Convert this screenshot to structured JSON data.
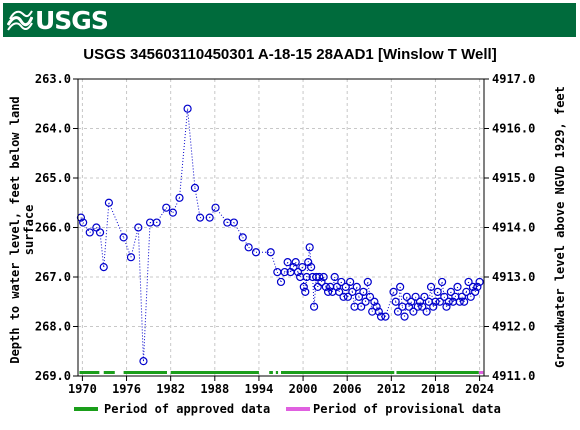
{
  "banner": {
    "logo_text": "USGS",
    "color": "#006b3c"
  },
  "chart_data": {
    "type": "scatter",
    "title": "USGS 345603110450301 A-18-15 28AAD1 [Winslow T Well]",
    "ylabel_left": [
      "Depth to water level, feet below land",
      "surface"
    ],
    "ylabel_right": "Groundwater level above NGVD 1929, feet",
    "x_ticks": [
      "1970",
      "1976",
      "1982",
      "1988",
      "1994",
      "2000",
      "2006",
      "2012",
      "2018",
      "2024"
    ],
    "x_tick_values": [
      1970,
      1976,
      1982,
      1988,
      1994,
      2000,
      2006,
      2012,
      2018,
      2024
    ],
    "xlim": [
      1969.4,
      2024.6
    ],
    "y_left_ticks": [
      "263.0",
      "264.0",
      "265.0",
      "266.0",
      "267.0",
      "268.0",
      "269.0"
    ],
    "y_left_tick_values": [
      263,
      264,
      265,
      266,
      267,
      268,
      269
    ],
    "ylim_left": [
      263.0,
      269.0
    ],
    "y_left_inverted": true,
    "y_right_ticks": [
      "4917.0",
      "4916.0",
      "4915.0",
      "4914.0",
      "4913.0",
      "4912.0",
      "4911.0"
    ],
    "y_right_tick_values": [
      4917,
      4916,
      4915,
      4914,
      4913,
      4912,
      4911
    ],
    "ylim_right": [
      4911.0,
      4917.0
    ],
    "series": [
      {
        "color": "#0000cc",
        "marker": "open-circle",
        "points": [
          [
            1969.8,
            265.8
          ],
          [
            1970.1,
            265.9
          ],
          [
            1971.0,
            266.1
          ],
          [
            1971.9,
            266.0
          ],
          [
            1972.4,
            266.1
          ],
          [
            1972.9,
            266.8
          ],
          [
            1973.6,
            265.5
          ],
          [
            1975.6,
            266.2
          ],
          [
            1976.6,
            266.6
          ],
          [
            1977.6,
            266.0
          ],
          [
            1978.3,
            268.7
          ],
          [
            1979.2,
            265.9
          ],
          [
            1980.1,
            265.9
          ],
          [
            1981.4,
            265.6
          ],
          [
            1982.3,
            265.7
          ],
          [
            1983.2,
            265.4
          ],
          [
            1984.3,
            263.6
          ],
          [
            1985.3,
            265.2
          ],
          [
            1986.0,
            265.8
          ],
          [
            1987.3,
            265.8
          ],
          [
            1988.1,
            265.6
          ],
          [
            1989.7,
            265.9
          ],
          [
            1990.6,
            265.9
          ],
          [
            1991.8,
            266.2
          ],
          [
            1992.6,
            266.4
          ],
          [
            1993.6,
            266.5
          ],
          [
            1995.6,
            266.5
          ],
          [
            1996.5,
            266.9
          ],
          [
            1997.0,
            267.1
          ],
          [
            1997.5,
            266.9
          ],
          [
            1997.9,
            266.7
          ],
          [
            1998.3,
            266.9
          ],
          [
            1998.7,
            266.8
          ],
          [
            1999.0,
            266.7
          ],
          [
            1999.3,
            266.9
          ],
          [
            1999.6,
            267.0
          ],
          [
            1999.9,
            266.8
          ],
          [
            2000.1,
            267.2
          ],
          [
            2000.3,
            267.3
          ],
          [
            2000.5,
            267.0
          ],
          [
            2000.7,
            266.7
          ],
          [
            2000.9,
            266.4
          ],
          [
            2001.1,
            266.8
          ],
          [
            2001.3,
            267.0
          ],
          [
            2001.5,
            267.6
          ],
          [
            2001.8,
            267.0
          ],
          [
            2002.0,
            267.2
          ],
          [
            2002.2,
            267.0
          ],
          [
            2002.5,
            267.1
          ],
          [
            2002.8,
            267.0
          ],
          [
            2003.1,
            267.2
          ],
          [
            2003.4,
            267.3
          ],
          [
            2003.7,
            267.2
          ],
          [
            2004.0,
            267.3
          ],
          [
            2004.3,
            267.0
          ],
          [
            2004.6,
            267.2
          ],
          [
            2004.9,
            267.3
          ],
          [
            2005.2,
            267.1
          ],
          [
            2005.5,
            267.4
          ],
          [
            2005.8,
            267.2
          ],
          [
            2006.1,
            267.4
          ],
          [
            2006.4,
            267.1
          ],
          [
            2006.7,
            267.3
          ],
          [
            2007.0,
            267.6
          ],
          [
            2007.3,
            267.2
          ],
          [
            2007.6,
            267.4
          ],
          [
            2007.9,
            267.6
          ],
          [
            2008.2,
            267.3
          ],
          [
            2008.5,
            267.5
          ],
          [
            2008.8,
            267.1
          ],
          [
            2009.1,
            267.4
          ],
          [
            2009.4,
            267.7
          ],
          [
            2009.7,
            267.5
          ],
          [
            2010.0,
            267.6
          ],
          [
            2010.3,
            267.7
          ],
          [
            2010.6,
            267.8
          ],
          [
            2011.2,
            267.8
          ],
          [
            2012.3,
            267.3
          ],
          [
            2012.6,
            267.5
          ],
          [
            2012.9,
            267.7
          ],
          [
            2013.2,
            267.2
          ],
          [
            2013.5,
            267.6
          ],
          [
            2013.8,
            267.8
          ],
          [
            2014.1,
            267.4
          ],
          [
            2014.4,
            267.6
          ],
          [
            2014.7,
            267.5
          ],
          [
            2015.0,
            267.7
          ],
          [
            2015.3,
            267.4
          ],
          [
            2015.6,
            267.6
          ],
          [
            2015.9,
            267.5
          ],
          [
            2016.2,
            267.6
          ],
          [
            2016.5,
            267.4
          ],
          [
            2016.8,
            267.7
          ],
          [
            2017.1,
            267.5
          ],
          [
            2017.4,
            267.2
          ],
          [
            2017.7,
            267.6
          ],
          [
            2018.0,
            267.5
          ],
          [
            2018.3,
            267.3
          ],
          [
            2018.6,
            267.5
          ],
          [
            2018.9,
            267.1
          ],
          [
            2019.2,
            267.4
          ],
          [
            2019.5,
            267.6
          ],
          [
            2019.8,
            267.5
          ],
          [
            2020.1,
            267.3
          ],
          [
            2020.4,
            267.5
          ],
          [
            2020.7,
            267.4
          ],
          [
            2021.0,
            267.2
          ],
          [
            2021.3,
            267.5
          ],
          [
            2021.6,
            267.4
          ],
          [
            2021.9,
            267.5
          ],
          [
            2022.2,
            267.3
          ],
          [
            2022.5,
            267.1
          ],
          [
            2022.8,
            267.4
          ],
          [
            2023.1,
            267.2
          ],
          [
            2023.4,
            267.3
          ],
          [
            2023.7,
            267.2
          ],
          [
            2024.0,
            267.1
          ]
        ]
      }
    ],
    "bars": [
      {
        "label": "Period of approved data",
        "color": "#1a9e1a",
        "segments": [
          [
            1969.6,
            1972.3
          ],
          [
            1972.9,
            1974.4
          ],
          [
            1975.6,
            1981.5
          ],
          [
            1982.0,
            1994.0
          ],
          [
            1995.4,
            1995.9
          ],
          [
            1996.3,
            1996.6
          ],
          [
            1997.0,
            2012.4
          ],
          [
            2012.7,
            2023.9
          ]
        ]
      },
      {
        "label": "Period of provisional data",
        "color": "#e060e0",
        "segments": [
          [
            2023.9,
            2024.5
          ]
        ]
      }
    ],
    "legend_position": "bottom"
  }
}
